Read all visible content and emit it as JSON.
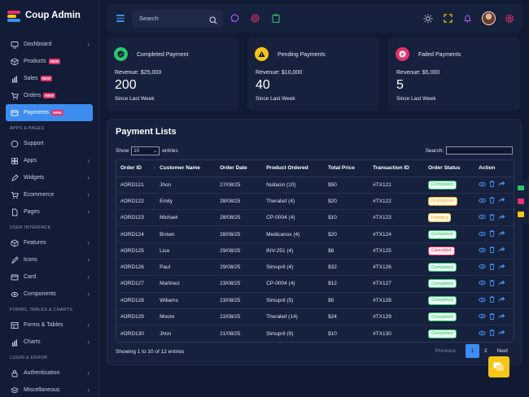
{
  "app": {
    "title": "Coup Admin",
    "colors": {
      "accent": "#3d8df0",
      "new_badge": "#e5336b",
      "success": "#29c66f",
      "warning": "#f5c518",
      "danger": "#e5336b"
    }
  },
  "sidebar": {
    "items_top": [
      {
        "label": "Dashboard",
        "icon": "monitor-icon",
        "chevron": true
      },
      {
        "label": "Products",
        "icon": "box-icon",
        "badge": "NEW"
      },
      {
        "label": "Sales",
        "icon": "chart-icon",
        "badge": "NEW"
      },
      {
        "label": "Orders",
        "icon": "cart-icon",
        "badge": "NEW"
      },
      {
        "label": "Payments",
        "icon": "card-icon",
        "badge": "NEW",
        "active": true
      }
    ],
    "section_apps": "APPS & PAGES",
    "items_apps": [
      {
        "label": "Support",
        "icon": "chat-icon"
      },
      {
        "label": "Apps",
        "icon": "grid-icon",
        "chevron": true
      },
      {
        "label": "Widgets",
        "icon": "edit-icon",
        "chevron": true
      },
      {
        "label": "Ecommerce",
        "icon": "cart-icon",
        "chevron": true
      },
      {
        "label": "Pages",
        "icon": "file-icon",
        "chevron": true
      }
    ],
    "section_ui": "USER INTERFACE",
    "items_ui": [
      {
        "label": "Features",
        "icon": "box-icon",
        "chevron": true
      },
      {
        "label": "Icons",
        "icon": "pen-icon",
        "chevron": true
      },
      {
        "label": "Card",
        "icon": "card-icon",
        "chevron": true
      },
      {
        "label": "Components",
        "icon": "eye-icon",
        "chevron": true
      }
    ],
    "section_forms": "FORMS, TABLES & CHARTS",
    "items_forms": [
      {
        "label": "Forms & Tables",
        "icon": "table-icon",
        "chevron": true
      },
      {
        "label": "Charts",
        "icon": "chart-icon",
        "chevron": true
      }
    ],
    "section_login": "LOGIN & ERROR",
    "items_login": [
      {
        "label": "Authentication",
        "icon": "lock-icon",
        "chevron": true
      },
      {
        "label": "Miscellaneous",
        "icon": "layers-icon",
        "chevron": true
      }
    ]
  },
  "topbar": {
    "search_placeholder": "Search"
  },
  "cards": [
    {
      "title": "Completed Payment",
      "revenue": "Revenue: $25,000",
      "value": "200",
      "since": "Since Last Week",
      "icon": "check-icon",
      "color": "#29c66f"
    },
    {
      "title": "Pending Payments",
      "revenue": "Revenue: $10,000",
      "value": "40",
      "since": "Since Last Week",
      "icon": "warning-icon",
      "color": "#f5c518"
    },
    {
      "title": "Failed Payments",
      "revenue": "Revenue: $5,000",
      "value": "5",
      "since": "Since Last Week",
      "icon": "close-icon",
      "color": "#e5336b"
    }
  ],
  "payments": {
    "title": "Payment Lists",
    "show_label": "Show",
    "entries_value": "10",
    "entries_label": "entries",
    "search_label": "Search:",
    "columns": [
      "Order ID",
      "Customer Name",
      "Order Date",
      "Product Ordered",
      "Total Price",
      "Transaction ID",
      "Order Status",
      "Action"
    ],
    "rows": [
      {
        "id": "#ORD121",
        "name": "Jhon",
        "date": "27/08/25",
        "product": "Nullacin (10)",
        "price": "$50",
        "txn": "#TX121",
        "status": "Completed",
        "kind": "completed"
      },
      {
        "id": "#ORD122",
        "name": "Emily",
        "date": "28/08/25",
        "product": "Theralief (4)",
        "price": "$20",
        "txn": "#TX122",
        "status": "In progress",
        "kind": "inprogress"
      },
      {
        "id": "#ORD123",
        "name": "Michael",
        "date": "28/08/25",
        "product": "CP-0004 (4)",
        "price": "$10",
        "txn": "#TX123",
        "status": "Pending",
        "kind": "pending"
      },
      {
        "id": "#ORD124",
        "name": "Brown",
        "date": "28/08/25",
        "product": "Medicanox (4)",
        "price": "$20",
        "txn": "#TX124",
        "status": "Completed",
        "kind": "completed"
      },
      {
        "id": "#ORD125",
        "name": "Lisa",
        "date": "29/08/25",
        "product": "INV-251 (4)",
        "price": "$8",
        "txn": "#TX125",
        "status": "Cancelled",
        "kind": "cancelled"
      },
      {
        "id": "#ORD126",
        "name": "Paul",
        "date": "29/08/25",
        "product": "Simupril (4)",
        "price": "$32",
        "txn": "#TX126",
        "status": "Completed",
        "kind": "completed"
      },
      {
        "id": "#ORD127",
        "name": "Martinez",
        "date": "23/08/25",
        "product": "CP-0004 (4)",
        "price": "$12",
        "txn": "#TX127",
        "status": "Completed",
        "kind": "completed"
      },
      {
        "id": "#ORD128",
        "name": "Wiliams",
        "date": "23/08/25",
        "product": "Simupril (5)",
        "price": "$5",
        "txn": "#TX128",
        "status": "Completed",
        "kind": "completed"
      },
      {
        "id": "#ORD129",
        "name": "Moore",
        "date": "22/08/25",
        "product": "Theralief (14)",
        "price": "$24",
        "txn": "#TX129",
        "status": "Completed",
        "kind": "completed"
      },
      {
        "id": "#ORD130",
        "name": "Jhon",
        "date": "21/08/25",
        "product": "Simupril (9)",
        "price": "$10",
        "txn": "#TX130",
        "status": "Completed",
        "kind": "completed"
      }
    ],
    "footer_info": "Showing 1 to 10 of 12 entries",
    "pagination": {
      "previous": "Previous",
      "pages": [
        "1",
        "2"
      ],
      "current": "1",
      "next": "Next"
    }
  }
}
